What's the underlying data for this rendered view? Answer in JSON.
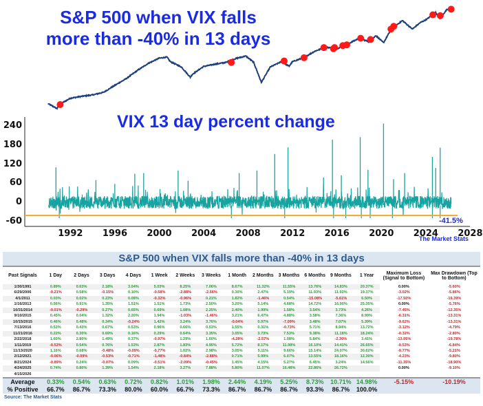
{
  "top_chart": {
    "title": "S&P 500 when VIX falls more than -40% in 13 days"
  },
  "vix_chart": {
    "title": "VIX 13 day percent change",
    "threshold_label": "-41.5%",
    "brand": "The Market Stats"
  },
  "chart_data": [
    {
      "type": "line",
      "title": "S&P 500 when VIX falls more than -40% in 13 days",
      "yscale": "log",
      "line_color": "#1f3f7a",
      "marker_color": "#ff1a1a",
      "x": [
        1990,
        1990.8,
        1991,
        1992,
        1993,
        1994,
        1995,
        1996,
        1997,
        1998,
        1999,
        2000,
        2000.7,
        2001,
        2002,
        2002.8,
        2003,
        2004,
        2005,
        2006,
        2007,
        2007.8,
        2008.5,
        2009.2,
        2010,
        2011,
        2011.7,
        2012,
        2013,
        2014,
        2015,
        2016,
        2017,
        2018,
        2018.98,
        2019.5,
        2020.2,
        2020.9,
        2021.9,
        2022.8,
        2023.5,
        2024,
        2024.9,
        2025.3,
        2025.9,
        2026.3
      ],
      "values": [
        350,
        300,
        340,
        415,
        440,
        460,
        500,
        620,
        760,
        980,
        1230,
        1450,
        1500,
        1300,
        1100,
        800,
        880,
        1120,
        1200,
        1270,
        1450,
        1550,
        1280,
        680,
        1100,
        1300,
        1130,
        1300,
        1470,
        1800,
        2050,
        1950,
        2270,
        2700,
        2400,
        2950,
        2350,
        3600,
        4700,
        3600,
        4400,
        4800,
        6000,
        5100,
        6600,
        6700
      ],
      "signals": {
        "x": [
          1991.08,
          2006.49,
          2011.25,
          2013.04,
          2014.83,
          2015.69,
          2015.79,
          2016.53,
          2016.89,
          2018.14,
          2019.03,
          2020.87,
          2021.12,
          2024.64,
          2025.31,
          2026.29
        ],
        "values": [
          340,
          1270,
          1330,
          1470,
          2018,
          1950,
          2020,
          2150,
          2200,
          2700,
          2600,
          3600,
          3930,
          5620,
          5480,
          6700
        ]
      }
    },
    {
      "type": "line",
      "title": "VIX 13 day percent change",
      "line_color": "#17a3a0",
      "xlim": [
        1988.5,
        2028
      ],
      "ylim": [
        -70,
        265
      ],
      "xticks": [
        "1992",
        "1996",
        "2000",
        "2004",
        "2008",
        "2012",
        "2016",
        "2020",
        "2024",
        "2028"
      ],
      "yticks": [
        "240",
        "180",
        "120",
        "60",
        "0",
        "-60"
      ],
      "threshold": -41.5,
      "threshold_color": "#f5a623",
      "spikes": {
        "x": [
          1990.7,
          1991.9,
          1994.3,
          1996.0,
          1997.8,
          1998.6,
          2001.7,
          2002.6,
          2007.2,
          2008.8,
          2010.4,
          2011.6,
          2014.8,
          2015.6,
          2016.4,
          2018.1,
          2018.8,
          2020.2,
          2021.1,
          2022.1,
          2024.6,
          2024.9,
          2025.3
        ],
        "values": [
          110,
          50,
          70,
          58,
          90,
          92,
          100,
          68,
          92,
          100,
          152,
          173,
          78,
          197,
          85,
          205,
          102,
          248,
          73,
          92,
          143,
          108,
          172
        ]
      }
    }
  ],
  "table": {
    "title": "S&P 500 when VIX falls more than -40% in 13 days",
    "headers": [
      "Past Signals",
      "1 Day",
      "2 Days",
      "3 Days",
      "4 Days",
      "1 Week",
      "2 Weeks",
      "3 Weeks",
      "1 Month",
      "2 Months",
      "3 Months",
      "6 Months",
      "9 Months",
      "1 Year",
      "Maximum Loss (Signal to Bottom)",
      "Max Drawdown (Top to Bottom)"
    ],
    "rows": [
      [
        "1/30/1991",
        "0.89%",
        "0.63%",
        "2.18%",
        "3.04%",
        "5.03%",
        "8.25%",
        "7.06%",
        "8.67%",
        "11.32%",
        "11.55%",
        "13.76%",
        "14.83%",
        "20.37%",
        "0.00%",
        "-5.60%"
      ],
      [
        "6/29/2006",
        "-0.21%",
        "0.58%",
        "-0.15%",
        "0.10%",
        "-0.58%",
        "-2.88%",
        "-2.56%",
        "0.30%",
        "2.47%",
        "5.19%",
        "11.93%",
        "11.92%",
        "19.37%",
        "-3.02%",
        "-5.86%"
      ],
      [
        "4/1/2011",
        "0.03%",
        "0.02%",
        "0.23%",
        "0.08%",
        "-0.32%",
        "-0.96%",
        "0.21%",
        "1.82%",
        "-1.46%",
        "0.54%",
        "-15.08%",
        "-5.61%",
        "6.50%",
        "-17.50%",
        "-19.39%"
      ],
      [
        "1/16/2013",
        "0.56%",
        "0.91%",
        "1.35%",
        "1.51%",
        "1.51%",
        "1.73%",
        "2.50%",
        "3.20%",
        "5.14%",
        "4.68%",
        "14.72%",
        "16.90%",
        "25.35%",
        "0.00%",
        "-5.76%"
      ],
      [
        "10/31/2014",
        "-0.01%",
        "-0.29%",
        "0.27%",
        "0.65%",
        "0.69%",
        "1.08%",
        "2.25%",
        "2.40%",
        "1.99%",
        "1.58%",
        "3.54%",
        "3.73%",
        "4.26%",
        "-7.45%",
        "-12.35%"
      ],
      [
        "9/10/2015",
        "0.45%",
        "0.04%",
        "1.32%",
        "2.20%",
        "1.94%",
        "-1.03%",
        "-1.46%",
        "3.21%",
        "6.47%",
        "4.88%",
        "3.58%",
        "7.36%",
        "8.99%",
        "-6.31%",
        "-13.31%"
      ],
      [
        "10/15/2015",
        "0.46%",
        "0.48%",
        "0.34%",
        "-0.24%",
        "1.42%",
        "3.24%",
        "3.76%",
        "-0.04%",
        "0.97%",
        "-7.09%",
        "3.48%",
        "7.07%",
        "5.39%",
        "-9.62%",
        "-13.31%"
      ],
      [
        "7/13/2016",
        "0.53%",
        "0.43%",
        "0.67%",
        "0.53%",
        "0.96%",
        "0.66%",
        "0.53%",
        "1.55%",
        "0.31%",
        "-0.73%",
        "5.71%",
        "8.94%",
        "13.72%",
        "-3.12%",
        "-4.79%"
      ],
      [
        "11/21/2016",
        "0.22%",
        "0.30%",
        "0.69%",
        "0.16%",
        "0.29%",
        "0.64%",
        "3.35%",
        "3.05%",
        "3.73%",
        "7.53%",
        "9.38%",
        "11.18%",
        "18.24%",
        "-0.32%",
        "-2.80%"
      ],
      [
        "2/22/2018",
        "1.60%",
        "2.80%",
        "1.49%",
        "0.37%",
        "-0.97%",
        "1.29%",
        "1.60%",
        "-4.28%",
        "-2.57%",
        "1.08%",
        "5.84%",
        "-2.30%",
        "3.41%",
        "-13.05%",
        "-19.78%"
      ],
      [
        "1/11/2019",
        "-0.53%",
        "0.54%",
        "0.76%",
        "1.53%",
        "2.87%",
        "1.83%",
        "4.95%",
        "5.72%",
        "8.17%",
        "11.98%",
        "16.10%",
        "14.41%",
        "26.65%",
        "-0.53%",
        "-6.84%"
      ],
      [
        "11/13/2020",
        "1.16%",
        "0.68%",
        "-0.48%",
        "-0.09%",
        "-0.77%",
        "1.02%",
        "2.98%",
        "3.05%",
        "5.11%",
        "9.66%",
        "15.14%",
        "24.07%",
        "30.62%",
        "-0.77%",
        "-5.21%"
      ],
      [
        "2/12/2021",
        "-0.06%",
        "-0.09%",
        "-0.53%",
        "-0.71%",
        "-1.48%",
        "-0.84%",
        "-2.88%",
        "0.71%",
        "5.99%",
        "6.07%",
        "13.55%",
        "18.16%",
        "12.30%",
        "-4.23%",
        "-9.80%"
      ],
      [
        "8/21/2024",
        "-0.89%",
        "0.24%",
        "-0.07%",
        "0.09%",
        "-0.51%",
        "-2.09%",
        "-0.45%",
        "1.45%",
        "4.15%",
        "5.27%",
        "6.45%",
        "3.24%",
        "14.56%",
        "-11.35%",
        "-18.90%"
      ],
      [
        "4/24/2025",
        "0.74%",
        "0.80%",
        "1.39%",
        "1.54%",
        "2.18%",
        "3.27%",
        "7.88%",
        "5.80%",
        "11.07%",
        "16.48%",
        "22.86%",
        "26.72%",
        "",
        "0.00%",
        "-9.10%"
      ],
      [
        "4/15/2026",
        "",
        "",
        "",
        "",
        "",
        "",
        "",
        "",
        "",
        "",
        "",
        "",
        "",
        "",
        ""
      ]
    ],
    "average": [
      "Average",
      "0.33%",
      "0.54%",
      "0.63%",
      "0.72%",
      "0.82%",
      "1.01%",
      "1.98%",
      "2.44%",
      "4.19%",
      "5.25%",
      "8.73%",
      "10.71%",
      "14.98%",
      "-5.15%",
      "-10.19%"
    ],
    "positive": [
      "% Positive",
      "66.7%",
      "86.7%",
      "73.3%",
      "80.0%",
      "60.0%",
      "66.7%",
      "73.3%",
      "86.7%",
      "86.7%",
      "86.7%",
      "93.3%",
      "86.7%",
      "100.0%",
      "",
      ""
    ],
    "source": "Source: The Market Stats"
  }
}
